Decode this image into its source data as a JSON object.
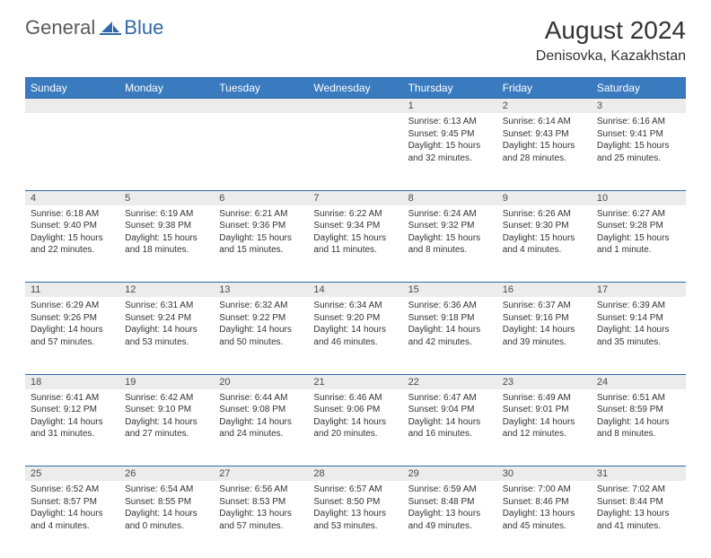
{
  "brand": {
    "part1": "General",
    "part2": "Blue"
  },
  "title": "August 2024",
  "location": "Denisovka, Kazakhstan",
  "colors": {
    "header_bg": "#3a7bbf",
    "header_border": "#2f6aa8",
    "daynum_bg": "#ececec",
    "text": "#333333",
    "logo_gray": "#5a5a5a",
    "logo_blue": "#2f6aa8"
  },
  "weekdays": [
    "Sunday",
    "Monday",
    "Tuesday",
    "Wednesday",
    "Thursday",
    "Friday",
    "Saturday"
  ],
  "weeks": [
    {
      "days": [
        {
          "num": "",
          "sunrise": "",
          "sunset": "",
          "daylight": ""
        },
        {
          "num": "",
          "sunrise": "",
          "sunset": "",
          "daylight": ""
        },
        {
          "num": "",
          "sunrise": "",
          "sunset": "",
          "daylight": ""
        },
        {
          "num": "",
          "sunrise": "",
          "sunset": "",
          "daylight": ""
        },
        {
          "num": "1",
          "sunrise": "Sunrise: 6:13 AM",
          "sunset": "Sunset: 9:45 PM",
          "daylight": "Daylight: 15 hours and 32 minutes."
        },
        {
          "num": "2",
          "sunrise": "Sunrise: 6:14 AM",
          "sunset": "Sunset: 9:43 PM",
          "daylight": "Daylight: 15 hours and 28 minutes."
        },
        {
          "num": "3",
          "sunrise": "Sunrise: 6:16 AM",
          "sunset": "Sunset: 9:41 PM",
          "daylight": "Daylight: 15 hours and 25 minutes."
        }
      ]
    },
    {
      "days": [
        {
          "num": "4",
          "sunrise": "Sunrise: 6:18 AM",
          "sunset": "Sunset: 9:40 PM",
          "daylight": "Daylight: 15 hours and 22 minutes."
        },
        {
          "num": "5",
          "sunrise": "Sunrise: 6:19 AM",
          "sunset": "Sunset: 9:38 PM",
          "daylight": "Daylight: 15 hours and 18 minutes."
        },
        {
          "num": "6",
          "sunrise": "Sunrise: 6:21 AM",
          "sunset": "Sunset: 9:36 PM",
          "daylight": "Daylight: 15 hours and 15 minutes."
        },
        {
          "num": "7",
          "sunrise": "Sunrise: 6:22 AM",
          "sunset": "Sunset: 9:34 PM",
          "daylight": "Daylight: 15 hours and 11 minutes."
        },
        {
          "num": "8",
          "sunrise": "Sunrise: 6:24 AM",
          "sunset": "Sunset: 9:32 PM",
          "daylight": "Daylight: 15 hours and 8 minutes."
        },
        {
          "num": "9",
          "sunrise": "Sunrise: 6:26 AM",
          "sunset": "Sunset: 9:30 PM",
          "daylight": "Daylight: 15 hours and 4 minutes."
        },
        {
          "num": "10",
          "sunrise": "Sunrise: 6:27 AM",
          "sunset": "Sunset: 9:28 PM",
          "daylight": "Daylight: 15 hours and 1 minute."
        }
      ]
    },
    {
      "days": [
        {
          "num": "11",
          "sunrise": "Sunrise: 6:29 AM",
          "sunset": "Sunset: 9:26 PM",
          "daylight": "Daylight: 14 hours and 57 minutes."
        },
        {
          "num": "12",
          "sunrise": "Sunrise: 6:31 AM",
          "sunset": "Sunset: 9:24 PM",
          "daylight": "Daylight: 14 hours and 53 minutes."
        },
        {
          "num": "13",
          "sunrise": "Sunrise: 6:32 AM",
          "sunset": "Sunset: 9:22 PM",
          "daylight": "Daylight: 14 hours and 50 minutes."
        },
        {
          "num": "14",
          "sunrise": "Sunrise: 6:34 AM",
          "sunset": "Sunset: 9:20 PM",
          "daylight": "Daylight: 14 hours and 46 minutes."
        },
        {
          "num": "15",
          "sunrise": "Sunrise: 6:36 AM",
          "sunset": "Sunset: 9:18 PM",
          "daylight": "Daylight: 14 hours and 42 minutes."
        },
        {
          "num": "16",
          "sunrise": "Sunrise: 6:37 AM",
          "sunset": "Sunset: 9:16 PM",
          "daylight": "Daylight: 14 hours and 39 minutes."
        },
        {
          "num": "17",
          "sunrise": "Sunrise: 6:39 AM",
          "sunset": "Sunset: 9:14 PM",
          "daylight": "Daylight: 14 hours and 35 minutes."
        }
      ]
    },
    {
      "days": [
        {
          "num": "18",
          "sunrise": "Sunrise: 6:41 AM",
          "sunset": "Sunset: 9:12 PM",
          "daylight": "Daylight: 14 hours and 31 minutes."
        },
        {
          "num": "19",
          "sunrise": "Sunrise: 6:42 AM",
          "sunset": "Sunset: 9:10 PM",
          "daylight": "Daylight: 14 hours and 27 minutes."
        },
        {
          "num": "20",
          "sunrise": "Sunrise: 6:44 AM",
          "sunset": "Sunset: 9:08 PM",
          "daylight": "Daylight: 14 hours and 24 minutes."
        },
        {
          "num": "21",
          "sunrise": "Sunrise: 6:46 AM",
          "sunset": "Sunset: 9:06 PM",
          "daylight": "Daylight: 14 hours and 20 minutes."
        },
        {
          "num": "22",
          "sunrise": "Sunrise: 6:47 AM",
          "sunset": "Sunset: 9:04 PM",
          "daylight": "Daylight: 14 hours and 16 minutes."
        },
        {
          "num": "23",
          "sunrise": "Sunrise: 6:49 AM",
          "sunset": "Sunset: 9:01 PM",
          "daylight": "Daylight: 14 hours and 12 minutes."
        },
        {
          "num": "24",
          "sunrise": "Sunrise: 6:51 AM",
          "sunset": "Sunset: 8:59 PM",
          "daylight": "Daylight: 14 hours and 8 minutes."
        }
      ]
    },
    {
      "days": [
        {
          "num": "25",
          "sunrise": "Sunrise: 6:52 AM",
          "sunset": "Sunset: 8:57 PM",
          "daylight": "Daylight: 14 hours and 4 minutes."
        },
        {
          "num": "26",
          "sunrise": "Sunrise: 6:54 AM",
          "sunset": "Sunset: 8:55 PM",
          "daylight": "Daylight: 14 hours and 0 minutes."
        },
        {
          "num": "27",
          "sunrise": "Sunrise: 6:56 AM",
          "sunset": "Sunset: 8:53 PM",
          "daylight": "Daylight: 13 hours and 57 minutes."
        },
        {
          "num": "28",
          "sunrise": "Sunrise: 6:57 AM",
          "sunset": "Sunset: 8:50 PM",
          "daylight": "Daylight: 13 hours and 53 minutes."
        },
        {
          "num": "29",
          "sunrise": "Sunrise: 6:59 AM",
          "sunset": "Sunset: 8:48 PM",
          "daylight": "Daylight: 13 hours and 49 minutes."
        },
        {
          "num": "30",
          "sunrise": "Sunrise: 7:00 AM",
          "sunset": "Sunset: 8:46 PM",
          "daylight": "Daylight: 13 hours and 45 minutes."
        },
        {
          "num": "31",
          "sunrise": "Sunrise: 7:02 AM",
          "sunset": "Sunset: 8:44 PM",
          "daylight": "Daylight: 13 hours and 41 minutes."
        }
      ]
    }
  ]
}
